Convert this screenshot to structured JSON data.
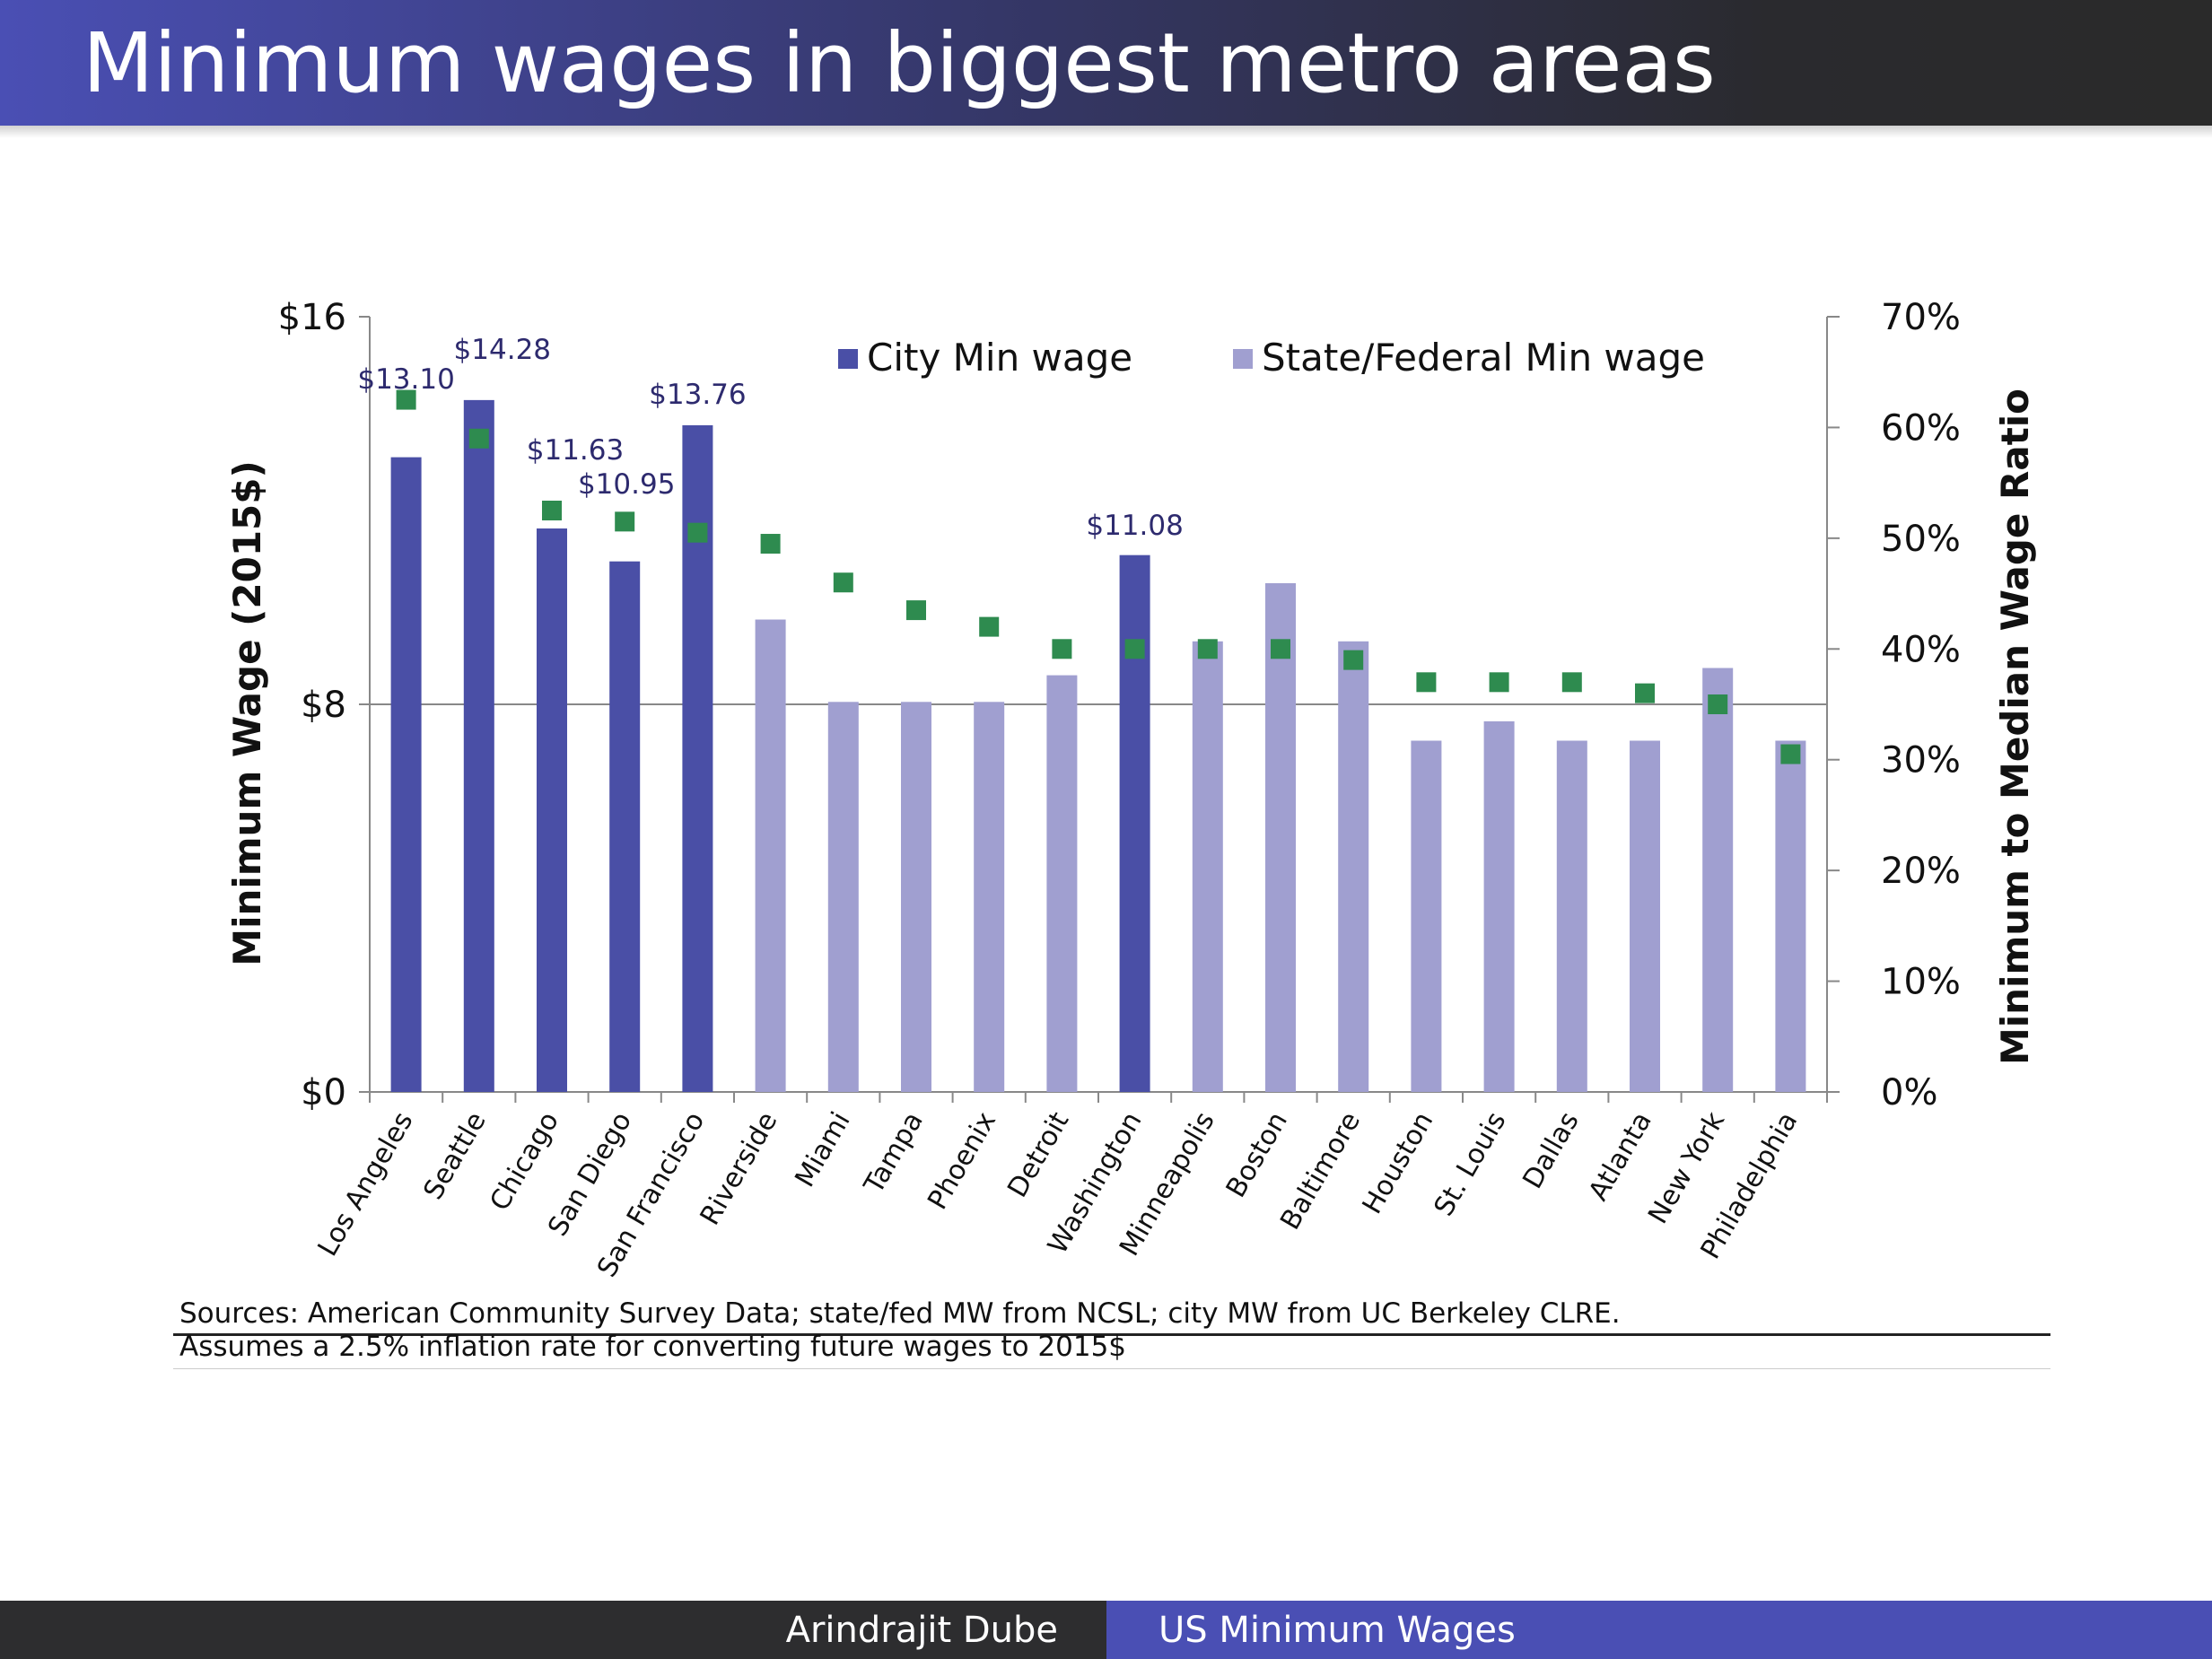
{
  "slide": {
    "title": "Minimum wages in biggest metro areas",
    "sources_line1": "Sources: American Community Survey Data; state/fed MW from NCSL; city MW from UC Berkeley CLRE.",
    "sources_line2": "Assumes a 2.5% inflation rate for converting future wages to 2015$",
    "footer_author": "Arindrajit Dube",
    "footer_topic": "US Minimum Wages"
  },
  "colors": {
    "title_bar": "#4a4fb4",
    "city_bar": "#4a4fa6",
    "state_bar": "#a09fd0",
    "ratio_marker": "#2e8b4f",
    "value_label": "#2d2a6e",
    "footer_dark": "#2d2d2f",
    "footer_accent": "#4a4fb4"
  },
  "chart_data": {
    "type": "bar",
    "ylabel": "Minimum Wage (2015$)",
    "y2label": "Minimum to Median Wage Ratio",
    "ylim": [
      0,
      16
    ],
    "y2lim": [
      0,
      0.7
    ],
    "yticks": [
      "$0",
      "$8",
      "$16"
    ],
    "y2ticks": [
      "0%",
      "10%",
      "20%",
      "30%",
      "40%",
      "50%",
      "60%",
      "70%"
    ],
    "gridlines": [
      8
    ],
    "legend": [
      {
        "label": "City Min wage",
        "color": "#4a4fa6"
      },
      {
        "label": "State/Federal Min wage",
        "color": "#a09fd0"
      }
    ],
    "legend_position": "top",
    "categories": [
      "Los Angeles",
      "Seattle",
      "Chicago",
      "San Diego",
      "San Francisco",
      "Riverside",
      "Miami",
      "Tampa",
      "Phoenix",
      "Detroit",
      "Washington",
      "Minneapolis",
      "Boston",
      "Baltimore",
      "Houston",
      "St. Louis",
      "Dallas",
      "Atlanta",
      "New York",
      "Philadelphia"
    ],
    "series": [
      {
        "name": "City Min wage",
        "type": "bar",
        "values": [
          13.1,
          14.28,
          11.63,
          10.95,
          13.76,
          null,
          null,
          null,
          null,
          null,
          11.08,
          null,
          null,
          null,
          null,
          null,
          null,
          null,
          null,
          null
        ]
      },
      {
        "name": "State/Federal Min wage",
        "type": "bar",
        "values": [
          null,
          null,
          null,
          null,
          null,
          9.75,
          8.05,
          8.05,
          8.05,
          8.6,
          null,
          9.3,
          10.5,
          9.3,
          7.25,
          7.65,
          7.25,
          7.25,
          8.75,
          7.25
        ]
      },
      {
        "type": "marker",
        "axis": "y2",
        "values": [
          0.625,
          0.59,
          0.525,
          0.515,
          0.505,
          0.495,
          0.46,
          0.435,
          0.42,
          0.4,
          0.4,
          0.4,
          0.4,
          0.39,
          0.37,
          0.37,
          0.37,
          0.36,
          0.35,
          0.305
        ]
      }
    ],
    "data_labels": [
      "$13.10",
      "$14.28",
      "$11.63",
      "$10.95",
      "$13.76",
      null,
      null,
      null,
      null,
      null,
      "$11.08",
      null,
      null,
      null,
      null,
      null,
      null,
      null,
      null,
      null
    ]
  }
}
